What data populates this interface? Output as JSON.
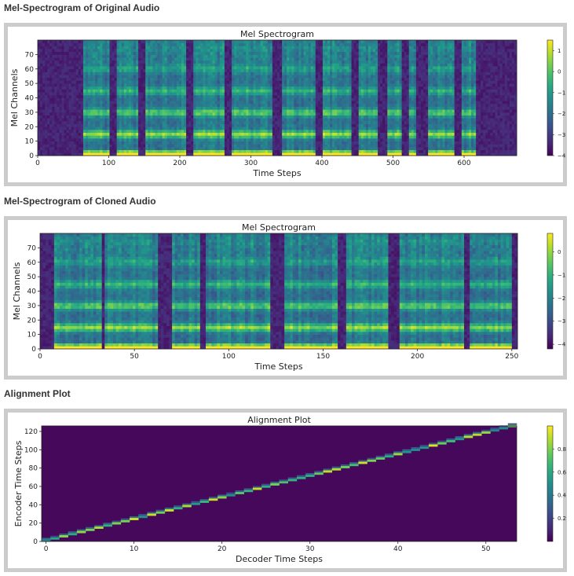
{
  "sections": [
    {
      "heading": "Mel-Spectrogram of Original Audio"
    },
    {
      "heading": "Mel-Spectrogram of Cloned Audio"
    },
    {
      "heading": "Alignment Plot"
    }
  ],
  "colors": {
    "panel_border": "#cccccc",
    "cmap_low": "#440154",
    "cmap_high": "#fde725"
  },
  "chart_data": [
    {
      "type": "heatmap",
      "title": "Mel Spectrogram",
      "xlabel": "Time Steps",
      "ylabel": "Mel Channels",
      "xlim": [
        0,
        674
      ],
      "ylim": [
        0,
        80
      ],
      "x_ticks": [
        0,
        100,
        200,
        300,
        400,
        500,
        600
      ],
      "y_ticks": [
        0,
        10,
        20,
        30,
        40,
        50,
        60,
        70
      ],
      "colorbar": {
        "min": -4,
        "max": 1.5,
        "ticks": [
          1,
          0,
          -1,
          -2,
          -3,
          -4
        ],
        "tick_labels": [
          "1",
          "0",
          "−1",
          "−2",
          "−3",
          "−4"
        ]
      },
      "voiced_segments": [
        [
          65,
          100
        ],
        [
          112,
          140
        ],
        [
          150,
          208
        ],
        [
          218,
          262
        ],
        [
          272,
          330
        ],
        [
          345,
          392
        ],
        [
          402,
          440
        ],
        [
          450,
          480
        ],
        [
          492,
          512
        ],
        [
          522,
          532
        ],
        [
          548,
          588
        ],
        [
          598,
          618
        ]
      ],
      "silent_value": -3.8
    },
    {
      "type": "heatmap",
      "title": "Mel Spectrogram",
      "xlabel": "Time Steps",
      "ylabel": "Mel Channels",
      "xlim": [
        0,
        253
      ],
      "ylim": [
        0,
        80
      ],
      "x_ticks": [
        0,
        50,
        100,
        150,
        200,
        250
      ],
      "y_ticks": [
        0,
        10,
        20,
        30,
        40,
        50,
        60,
        70
      ],
      "colorbar": {
        "min": -4.2,
        "max": 0.8,
        "ticks": [
          0,
          -1,
          -2,
          -3,
          -4
        ],
        "tick_labels": [
          "0",
          "−1",
          "−2",
          "−3",
          "−4"
        ]
      },
      "voiced_segments": [
        [
          8,
          32
        ],
        [
          34,
          62
        ],
        [
          70,
          85
        ],
        [
          88,
          122
        ],
        [
          130,
          158
        ],
        [
          162,
          185
        ],
        [
          190,
          224
        ],
        [
          228,
          250
        ]
      ],
      "silent_value": -3.5
    },
    {
      "type": "heatmap",
      "title": "Alignment Plot",
      "xlabel": "Decoder Time Steps",
      "ylabel": "Encoder Time Steps",
      "xlim": [
        -0.5,
        53.5
      ],
      "ylim": [
        0,
        126
      ],
      "x_ticks": [
        0,
        10,
        20,
        30,
        40,
        50
      ],
      "y_ticks": [
        0,
        20,
        40,
        60,
        80,
        100,
        120
      ],
      "colorbar": {
        "min": 0,
        "max": 1.0,
        "ticks": [
          0.8,
          0.6,
          0.4,
          0.2
        ],
        "tick_labels": [
          "0.8",
          "0.6",
          "0.4",
          "0.2"
        ]
      },
      "alignment_path": {
        "x": [
          0,
          53
        ],
        "y": [
          0,
          125
        ]
      }
    }
  ]
}
